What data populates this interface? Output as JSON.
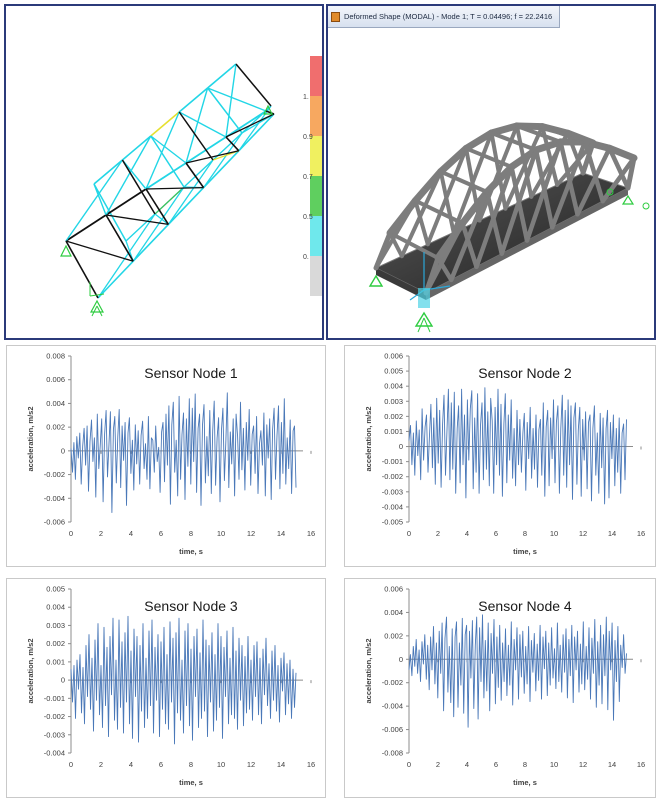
{
  "left_panel": {
    "legend_colors": [
      "#f06e6e",
      "#f7a860",
      "#f0f060",
      "#5fcf5f",
      "#6fe8ec",
      "#d9d9d9"
    ],
    "legend_labels": [
      "1.",
      "0.9",
      "0.7",
      "0.5",
      "0."
    ]
  },
  "right_panel": {
    "window_title": "Deformed Shape (MODAL) - Mode 1; T = 0.04496; f = 22.2416"
  },
  "colors": {
    "series": "#4a78b8",
    "axis": "#8c8c8c"
  },
  "chart_data": [
    {
      "type": "line",
      "title": "Sensor Node 1",
      "xlabel": "time, s",
      "ylabel": "acceleration, m/s2",
      "xlim": [
        0,
        16
      ],
      "ylim": [
        -0.006,
        0.008
      ],
      "xticks": [
        "0",
        "2",
        "4",
        "6",
        "8",
        "10",
        "12",
        "14",
        "16"
      ],
      "yticks": [
        "-0.006",
        "-0.004",
        "-0.002",
        "0",
        "0.002",
        "0.004",
        "0.006",
        "0.008"
      ],
      "grid": false,
      "series": [
        {
          "values": [
            0.0002,
            -0.0018,
            0.0007,
            -0.0024,
            0.0012,
            -0.0006,
            0.0015,
            -0.0028,
            0.0004,
            0.0019,
            -0.0012,
            0.0021,
            -0.0034,
            0.0008,
            0.0026,
            -0.0009,
            0.0011,
            -0.0039,
            0.0031,
            -0.0015,
            0.0004,
            0.0027,
            -0.0043,
            0.0014,
            0.0034,
            -0.0022,
            0.0006,
            0.0033,
            -0.0052,
            0.0018,
            0.0029,
            -0.0027,
            0.0012,
            0.0035,
            -0.0031,
            0.0021,
            -0.0008,
            0.0024,
            -0.0046,
            0.0015,
            0.0028,
            -0.0019,
            0.0009,
            -0.0033,
            0.0022,
            -0.0011,
            0.0017,
            -0.0028,
            0.0013,
            0.0025,
            -0.0015,
            0.0006,
            -0.0024,
            0.0029,
            -0.0032,
            0.0011,
            0.0009,
            -0.0018,
            0.0021,
            -0.0009,
            0.0003,
            -0.0035,
            0.0016,
            0.0024,
            -0.0026,
            0.0031,
            -0.0012,
            0.0038,
            -0.0045,
            0.0022,
            0.0041,
            -0.0018,
            0.0009,
            -0.0038,
            0.0046,
            -0.0024,
            0.0014,
            0.0032,
            -0.0041,
            0.0027,
            -0.0013,
            0.0044,
            -0.0028,
            0.0036,
            -0.0009,
            0.0048,
            -0.0035,
            0.0019,
            0.0031,
            -0.0046,
            0.0022,
            0.0039,
            -0.0027,
            0.0012,
            -0.0021,
            0.0034,
            -0.0036,
            0.0017,
            0.0042,
            -0.0029,
            0.0011,
            0.0028,
            -0.0043,
            0.0018,
            0.0036,
            -0.0025,
            0.0009,
            0.0049,
            -0.0031,
            0.0016,
            -0.0011,
            0.0027,
            -0.0038,
            0.0031,
            0.0012,
            -0.0024,
            0.0041,
            -0.0016,
            0.0019,
            -0.0033,
            0.0024,
            -0.0008,
            0.0035,
            -0.0029,
            0.0014,
            0.0021,
            -0.0019,
            0.0029,
            -0.0036,
            0.0006,
            0.0017,
            -0.0012,
            0.0032,
            -0.0038,
            0.0022,
            -0.0006,
            0.0027,
            -0.0041,
            0.0018,
            0.0036,
            -0.0024,
            0.0013,
            0.0038,
            -0.0032,
            0.0024,
            -0.0019,
            0.0044,
            -0.0028,
            0.0011,
            -0.0015,
            0.0026,
            -0.0036,
            0.0017,
            0.0021,
            -0.0031
          ]
        }
      ]
    },
    {
      "type": "line",
      "title": "Sensor Node 2",
      "xlabel": "time, s",
      "ylabel": "acceleration, m/s2",
      "xlim": [
        0,
        16
      ],
      "ylim": [
        -0.005,
        0.006
      ],
      "xticks": [
        "0",
        "2",
        "4",
        "6",
        "8",
        "10",
        "12",
        "14",
        "16"
      ],
      "yticks": [
        "-0.005",
        "-0.004",
        "-0.003",
        "-0.002",
        "-0.001",
        "0",
        "0.001",
        "0.002",
        "0.003",
        "0.004",
        "0.005",
        "0.006"
      ],
      "grid": false,
      "series": [
        {
          "values": [
            0.0004,
            0.0014,
            -0.0012,
            0.0009,
            -0.0019,
            0.0017,
            -0.0006,
            0.0011,
            -0.0022,
            0.0025,
            -0.0009,
            0.0013,
            0.0021,
            -0.0017,
            0.0006,
            0.0028,
            -0.0014,
            0.0019,
            -0.0025,
            0.0032,
            -0.0011,
            0.0024,
            -0.0027,
            0.0015,
            0.0034,
            -0.0019,
            0.0011,
            0.0038,
            -0.0022,
            0.0029,
            -0.0015,
            0.0036,
            -0.0031,
            0.0012,
            0.0027,
            -0.0024,
            0.0038,
            -0.0012,
            0.0021,
            -0.0034,
            0.0031,
            -0.0009,
            0.0025,
            0.0037,
            -0.0028,
            0.0019,
            -0.0017,
            0.0035,
            -0.0031,
            0.0014,
            0.0029,
            -0.0022,
            0.0039,
            -0.0015,
            0.0023,
            -0.0026,
            0.0032,
            0.0017,
            -0.0031,
            0.0026,
            -0.0012,
            0.0038,
            -0.0019,
            0.0028,
            -0.0033,
            0.0015,
            0.0035,
            -0.0024,
            0.0021,
            -0.0009,
            0.0031,
            -0.0021,
            0.0012,
            -0.0026,
            0.0024,
            -0.0012,
            0.0018,
            -0.0017,
            0.0009,
            0.0022,
            -0.0029,
            0.0016,
            -0.0008,
            0.0026,
            -0.0021,
            0.0012,
            -0.0015,
            0.0021,
            -0.0027,
            0.0011,
            0.0018,
            -0.0019,
            0.0029,
            -0.0033,
            0.0013,
            0.0024,
            -0.0026,
            0.0019,
            -0.0008,
            0.0031,
            -0.0024,
            0.0016,
            0.0027,
            -0.0031,
            0.0012,
            0.0034,
            -0.0019,
            0.0024,
            -0.0027,
            0.0031,
            -0.0012,
            0.0027,
            -0.0035,
            0.0019,
            0.0029,
            -0.0025,
            0.0011,
            0.0026,
            -0.0033,
            0.0018,
            -0.0009,
            0.0023,
            -0.0028,
            0.0016,
            0.0021,
            -0.0036,
            0.0012,
            0.0027,
            -0.0019,
            0.0009,
            -0.0031,
            0.0022,
            -0.0014,
            0.0019,
            -0.0038,
            0.0012,
            0.0024,
            -0.0034,
            0.0016,
            -0.0008,
            0.0021,
            -0.0026,
            0.0012,
            -0.0017,
            0.0019,
            -0.0031,
            0.0009,
            0.0015,
            -0.0022,
            0.0018
          ]
        }
      ]
    },
    {
      "type": "line",
      "title": "Sensor Node 3",
      "xlabel": "time, s",
      "ylabel": "acceleration, m/s2",
      "xlim": [
        0,
        16
      ],
      "ylim": [
        -0.004,
        0.005
      ],
      "xticks": [
        "0",
        "2",
        "4",
        "6",
        "8",
        "10",
        "12",
        "14",
        "16"
      ],
      "yticks": [
        "-0.004",
        "-0.003",
        "-0.002",
        "-0.001",
        "0",
        "0.001",
        "0.002",
        "0.003",
        "0.004",
        "0.005"
      ],
      "grid": false,
      "series": [
        {
          "values": [
            0.0006,
            -0.0012,
            0.0008,
            -0.0021,
            0.0011,
            -0.0005,
            0.0014,
            -0.0018,
            0.0007,
            -0.0024,
            0.0019,
            -0.0009,
            0.0025,
            -0.0016,
            0.0012,
            -0.0028,
            0.0022,
            -0.0011,
            0.0031,
            -0.0019,
            0.0008,
            -0.0026,
            0.0029,
            -0.0014,
            0.0018,
            -0.0031,
            0.0024,
            -0.0008,
            0.0034,
            -0.0022,
            0.0011,
            -0.0027,
            0.0033,
            -0.0015,
            0.0021,
            -0.0029,
            0.0026,
            -0.0012,
            0.0035,
            -0.0024,
            0.0016,
            -0.0032,
            0.0028,
            -0.0009,
            0.0024,
            -0.0034,
            0.0019,
            -0.0017,
            0.0031,
            -0.0026,
            0.0012,
            -0.0021,
            0.0027,
            -0.0014,
            0.0033,
            -0.0029,
            0.0018,
            -0.0011,
            0.0025,
            -0.0031,
            0.0021,
            -0.0016,
            0.0029,
            -0.0024,
            0.0014,
            -0.0027,
            0.0032,
            -0.0012,
            0.0023,
            -0.0035,
            0.0026,
            -0.0018,
            0.0034,
            -0.0022,
            0.0011,
            -0.0029,
            0.0027,
            -0.0014,
            0.0031,
            -0.0025,
            0.0017,
            -0.0033,
            0.0024,
            -0.0009,
            0.0028,
            -0.0026,
            0.0015,
            -0.0021,
            0.0033,
            -0.0017,
            0.0022,
            -0.0031,
            0.0019,
            -0.0012,
            0.0026,
            -0.0028,
            0.0014,
            -0.0022,
            0.0031,
            -0.0015,
            0.0024,
            -0.0032,
            0.0018,
            -0.0009,
            0.0027,
            -0.0024,
            0.0012,
            -0.0019,
            0.0029,
            -0.0021,
            0.0016,
            -0.0027,
            0.0023,
            -0.0011,
            0.0019,
            -0.0025,
            0.0013,
            -0.0018,
            0.0024,
            -0.0016,
            0.0011,
            -0.0022,
            0.0019,
            -0.0009,
            0.0021,
            -0.0019,
            0.0012,
            -0.0024,
            0.0017,
            -0.0008,
            0.0023,
            -0.0014,
            0.0009,
            -0.0021,
            0.0016,
            -0.0011,
            0.0019,
            -0.0017,
            0.0008,
            -0.0023,
            0.0012,
            -0.0006,
            0.0015,
            -0.0019,
            0.0009,
            -0.0013,
            0.0011,
            -0.0021,
            0.0006,
            -0.0015,
            0.0004
          ]
        }
      ]
    },
    {
      "type": "line",
      "title": "Sensor Node 4",
      "xlabel": "time, s",
      "ylabel": "acceleration, m/s2",
      "xlim": [
        0,
        16
      ],
      "ylim": [
        -0.008,
        0.006
      ],
      "xticks": [
        "0",
        "2",
        "4",
        "6",
        "8",
        "10",
        "12",
        "14",
        "16"
      ],
      "yticks": [
        "-0.008",
        "-0.006",
        "-0.004",
        "-0.002",
        "0",
        "0.002",
        "0.004",
        "0.006"
      ],
      "grid": false,
      "series": [
        {
          "values": [
            -0.0009,
            0.0004,
            -0.0014,
            0.0011,
            -0.0006,
            0.0017,
            -0.0012,
            0.0008,
            -0.0019,
            0.0015,
            -0.0004,
            0.0021,
            -0.0017,
            0.0012,
            -0.0026,
            0.0019,
            -0.0009,
            0.0028,
            -0.0021,
            0.0014,
            -0.0033,
            0.0024,
            -0.0012,
            0.0031,
            -0.0044,
            0.0018,
            0.0036,
            -0.0028,
            0.0011,
            -0.0037,
            0.0026,
            -0.0049,
            0.0019,
            0.0032,
            -0.0041,
            0.0014,
            -0.0022,
            0.0035,
            -0.0046,
            0.0021,
            0.0029,
            -0.0058,
            0.0024,
            -0.0016,
            0.0033,
            -0.0042,
            0.0012,
            0.0036,
            -0.0051,
            0.0027,
            -0.0019,
            0.0038,
            -0.0033,
            0.0016,
            -0.0027,
            0.0031,
            -0.0044,
            0.0022,
            -0.0012,
            0.0034,
            -0.0038,
            0.0019,
            -0.0024,
            0.0029,
            -0.0035,
            0.0014,
            -0.0019,
            0.0026,
            -0.0031,
            0.0012,
            -0.0022,
            0.0032,
            -0.0039,
            0.0017,
            -0.0009,
            0.0027,
            -0.0034,
            0.0021,
            -0.0015,
            0.0024,
            -0.0029,
            0.0011,
            -0.0021,
            0.0028,
            -0.0036,
            0.0016,
            -0.0011,
            0.0022,
            -0.0027,
            0.0013,
            -0.0018,
            0.0029,
            -0.0034,
            0.0019,
            -0.0008,
            0.0024,
            -0.0031,
            0.0014,
            -0.0022,
            0.0027,
            -0.0016,
            0.0009,
            -0.0025,
            0.0031,
            -0.0019,
            0.0012,
            -0.0028,
            0.0021,
            -0.0011,
            0.0026,
            -0.0033,
            0.0017,
            -0.0014,
            0.0029,
            -0.0037,
            0.0019,
            -0.0009,
            0.0024,
            -0.0028,
            0.0013,
            -0.0021,
            0.0032,
            -0.0026,
            0.0011,
            -0.0017,
            0.0027,
            -0.0034,
            0.0018,
            -0.0012,
            0.0034,
            -0.0041,
            0.0015,
            -0.0022,
            0.0029,
            -0.0038,
            0.0021,
            -0.0014,
            0.0036,
            -0.0043,
            0.0024,
            -0.0009,
            0.0031,
            -0.0052,
            0.0016,
            -0.0019,
            0.0028,
            -0.0036,
            0.0012,
            -0.0007,
            0.0021,
            -0.0012,
            0.0005
          ]
        }
      ]
    }
  ]
}
